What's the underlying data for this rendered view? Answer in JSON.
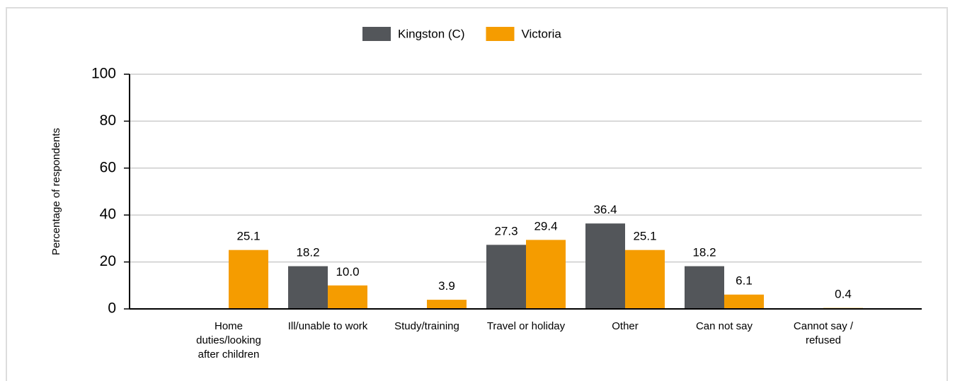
{
  "chart_data": {
    "type": "bar",
    "y_label": "Percentage of respondents",
    "categories": [
      "Home duties/looking after children",
      "Ill/unable to work",
      "Study/training",
      "Travel or holiday",
      "Other",
      "Can not say",
      "Cannot say / refused"
    ],
    "series": [
      {
        "name": "Kingston (C)",
        "color": "#53565a",
        "values": [
          null,
          18.2,
          null,
          27.3,
          36.4,
          18.2,
          null
        ],
        "value_labels": [
          null,
          "18.2",
          null,
          "27.3",
          "36.4",
          "18.2",
          null
        ]
      },
      {
        "name": "Victoria",
        "color": "#f59c00",
        "values": [
          25.1,
          10.0,
          3.9,
          29.4,
          25.1,
          6.1,
          0.4
        ],
        "value_labels": [
          "25.1",
          "10.0",
          "3.9",
          "29.4",
          "25.1",
          "6.1",
          "0.4"
        ]
      }
    ],
    "ylim": [
      0,
      100
    ],
    "yticks": [
      0,
      20,
      40,
      60,
      80,
      100
    ],
    "grid": true,
    "legend": "top"
  }
}
